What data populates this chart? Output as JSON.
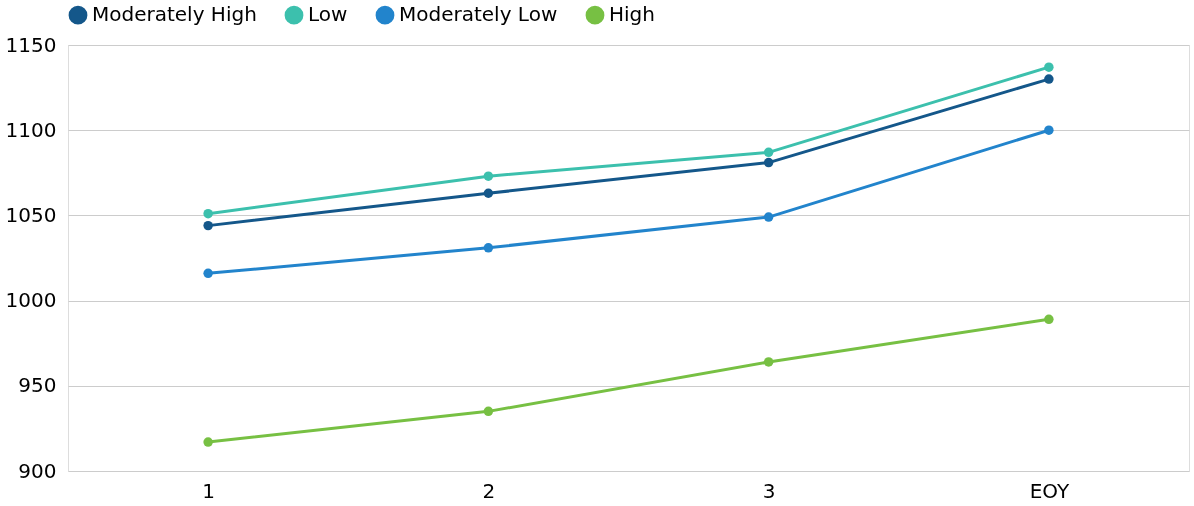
{
  "chart_data": {
    "type": "line",
    "categories": [
      "1",
      "2",
      "3",
      "EOY"
    ],
    "series": [
      {
        "name": "Moderately High",
        "color": "#14578a",
        "values": [
          1044,
          1063,
          1081,
          1130
        ]
      },
      {
        "name": "Low",
        "color": "#3cc0ad",
        "values": [
          1051,
          1073,
          1087,
          1137
        ]
      },
      {
        "name": "Moderately Low",
        "color": "#2284cc",
        "values": [
          1016,
          1031,
          1049,
          1100
        ]
      },
      {
        "name": "High",
        "color": "#77c043",
        "values": [
          917,
          935,
          964,
          989
        ]
      }
    ],
    "ylim": [
      900,
      1150
    ],
    "yticks": [
      900,
      950,
      1000,
      1050,
      1100,
      1150
    ],
    "grid": "y",
    "legend": "top",
    "marker": "circle",
    "line_style": "solid"
  }
}
